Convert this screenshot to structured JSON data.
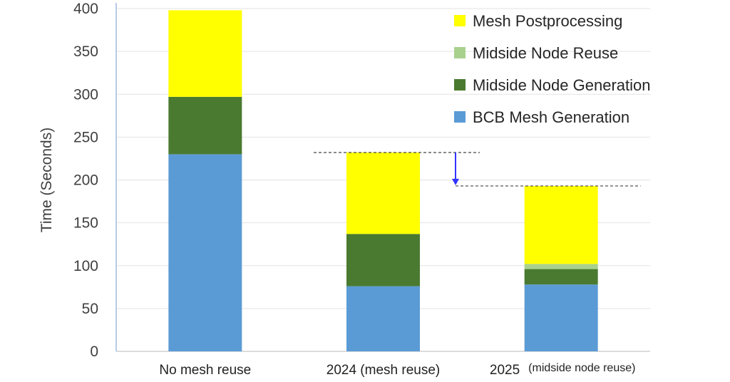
{
  "chart_data": {
    "type": "bar",
    "stacked": true,
    "title": "",
    "xlabel": "",
    "ylabel": "Time (Seconds)",
    "ylim": [
      0,
      400
    ],
    "yticks": [
      0,
      50,
      100,
      150,
      200,
      250,
      300,
      350,
      400
    ],
    "grid": true,
    "legend_position": "top-right",
    "categories": [
      {
        "main": "No mesh reuse",
        "sub": ""
      },
      {
        "main": "2024 (mesh reuse)",
        "sub": ""
      },
      {
        "main": "2025",
        "sub": "(midside node reuse)"
      }
    ],
    "series": [
      {
        "name": "BCB Mesh Generation",
        "color": "#5b9bd5",
        "values": [
          230,
          76,
          78
        ]
      },
      {
        "name": "Midside Node Generation",
        "color": "#4a7a30",
        "values": [
          67,
          61,
          18
        ]
      },
      {
        "name": "Midside Node Reuse",
        "color": "#a9d18e",
        "values": [
          0,
          0,
          6
        ]
      },
      {
        "name": "Mesh Postprocessing",
        "color": "#ffff00",
        "values": [
          101,
          95,
          91
        ]
      }
    ],
    "legend_order": [
      "Mesh Postprocessing",
      "Midside Node Reuse",
      "Midside Node Generation",
      "BCB Mesh Generation"
    ],
    "annotation": {
      "type": "reduction-arrow",
      "from_value": 232,
      "to_value": 193,
      "arrow_color": "#3333ff"
    }
  }
}
